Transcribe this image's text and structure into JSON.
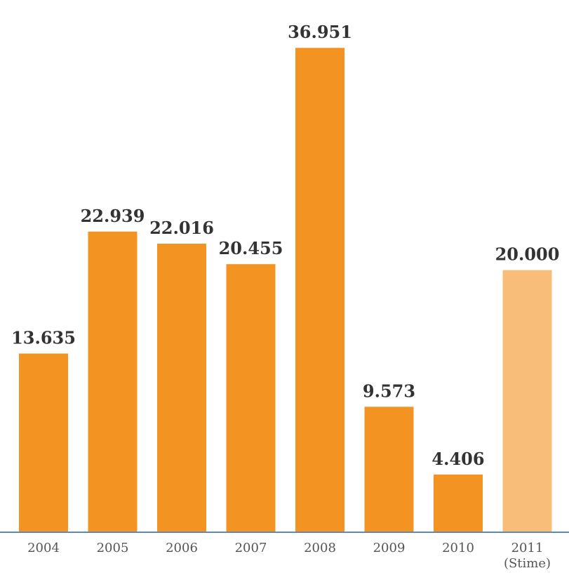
{
  "chart_data": {
    "type": "bar",
    "title": "",
    "xlabel": "",
    "ylabel": "",
    "categories": [
      "2004",
      "2005",
      "2006",
      "2007",
      "2008",
      "2009",
      "2010",
      "2011\n(Stime)"
    ],
    "values": [
      13635,
      22939,
      22016,
      20455,
      36951,
      9573,
      4406,
      20000
    ],
    "value_labels": [
      "13.635",
      "22.939",
      "22.016",
      "20.455",
      "36.951",
      "9.573",
      "4.406",
      "20.000"
    ],
    "highlight_index": 7,
    "ylim": [
      0,
      37500
    ],
    "grid": false,
    "legend": "none",
    "colors": {
      "bar": "#f39322",
      "bar_estimate": "#f8bd79",
      "axis": "#5e88b7",
      "value_text": "#333333",
      "tick_text": "#555555"
    }
  }
}
